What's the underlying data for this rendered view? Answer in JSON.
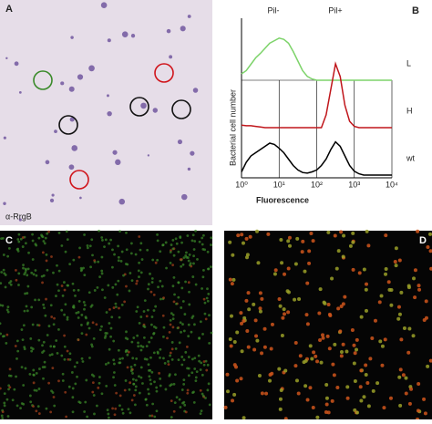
{
  "panel_a": {
    "letter": "A",
    "stain": "α-RrgB"
  },
  "panel_b": {
    "letter": "B",
    "type": "line",
    "xlabel": "Fluorescence",
    "ylabel": "Bacterial cell number",
    "annotations": [
      "Pil-",
      "Pil+"
    ],
    "xlim": [
      0,
      4
    ],
    "xticks": [
      {
        "value": 0,
        "label": "10⁰"
      },
      {
        "value": 1,
        "label": "10¹"
      },
      {
        "value": 2,
        "label": "10²"
      },
      {
        "value": 3,
        "label": "10³"
      },
      {
        "value": 4,
        "label": "10⁴"
      }
    ],
    "x": [
      0,
      0.125,
      0.25,
      0.375,
      0.5,
      0.625,
      0.75,
      0.875,
      1,
      1.125,
      1.25,
      1.375,
      1.5,
      1.625,
      1.75,
      1.875,
      2,
      2.125,
      2.25,
      2.375,
      2.5,
      2.625,
      2.75,
      2.875,
      3,
      3.125,
      3.25,
      3.375,
      3.5,
      3.625,
      3.75,
      3.875,
      4
    ],
    "series": [
      {
        "name": "L",
        "color": "#7dd36a",
        "values": [
          10,
          15,
          25,
          35,
          42,
          50,
          58,
          62,
          66,
          64,
          58,
          45,
          30,
          15,
          6,
          2,
          0,
          0,
          0,
          0,
          0,
          0,
          0,
          0,
          0,
          0,
          0,
          0,
          0,
          0,
          0,
          0,
          0
        ]
      },
      {
        "name": "H",
        "color": "#c0161b",
        "values": [
          4,
          3,
          3,
          2,
          1,
          0,
          0,
          0,
          0,
          0,
          0,
          0,
          0,
          0,
          0,
          0,
          0,
          0,
          20,
          60,
          100,
          80,
          35,
          10,
          2,
          0,
          0,
          0,
          0,
          0,
          0,
          0,
          0
        ]
      },
      {
        "name": "wt",
        "color": "#000000",
        "values": [
          5,
          20,
          30,
          35,
          40,
          45,
          50,
          48,
          42,
          35,
          25,
          15,
          8,
          4,
          3,
          5,
          8,
          15,
          25,
          40,
          52,
          45,
          30,
          15,
          6,
          2,
          0,
          0,
          0,
          0,
          0,
          0,
          0
        ]
      }
    ]
  },
  "panel_c": {
    "letter": "C"
  },
  "panel_d": {
    "letter": "D"
  }
}
